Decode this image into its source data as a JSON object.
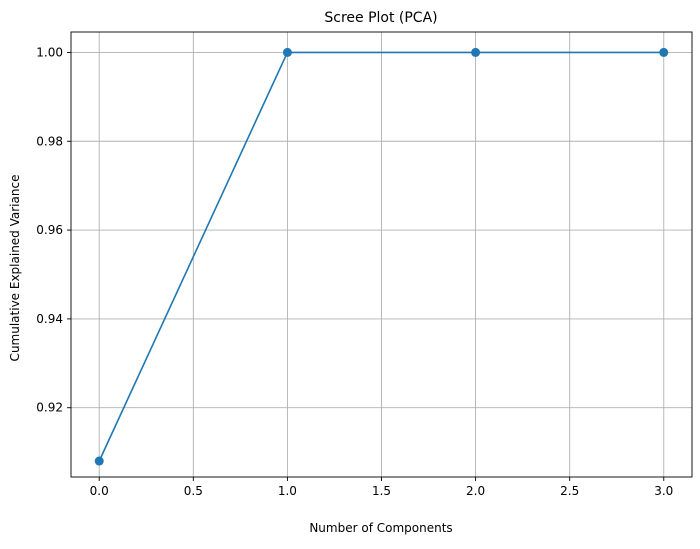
{
  "chart_data": {
    "type": "line",
    "title": "Scree Plot (PCA)",
    "xlabel": "Number of Components",
    "ylabel": "Cumulative Explained Variance",
    "x": [
      0,
      1,
      2,
      3
    ],
    "series": [
      {
        "values": [
          0.908,
          1.0,
          1.0,
          1.0
        ],
        "color": "#1f77b4",
        "marker": "circle"
      }
    ],
    "xlim": [
      -0.15,
      3.15
    ],
    "ylim": [
      0.9044,
      1.0046
    ],
    "xticks": [
      0.0,
      0.5,
      1.0,
      1.5,
      2.0,
      2.5,
      3.0
    ],
    "xtick_labels": [
      "0.0",
      "0.5",
      "1.0",
      "1.5",
      "2.0",
      "2.5",
      "3.0"
    ],
    "yticks": [
      0.92,
      0.94,
      0.96,
      0.98,
      1.0
    ],
    "ytick_labels": [
      "0.92",
      "0.94",
      "0.96",
      "0.98",
      "1.00"
    ],
    "grid": true,
    "grid_color": "#b0b0b0",
    "legend": "none"
  }
}
